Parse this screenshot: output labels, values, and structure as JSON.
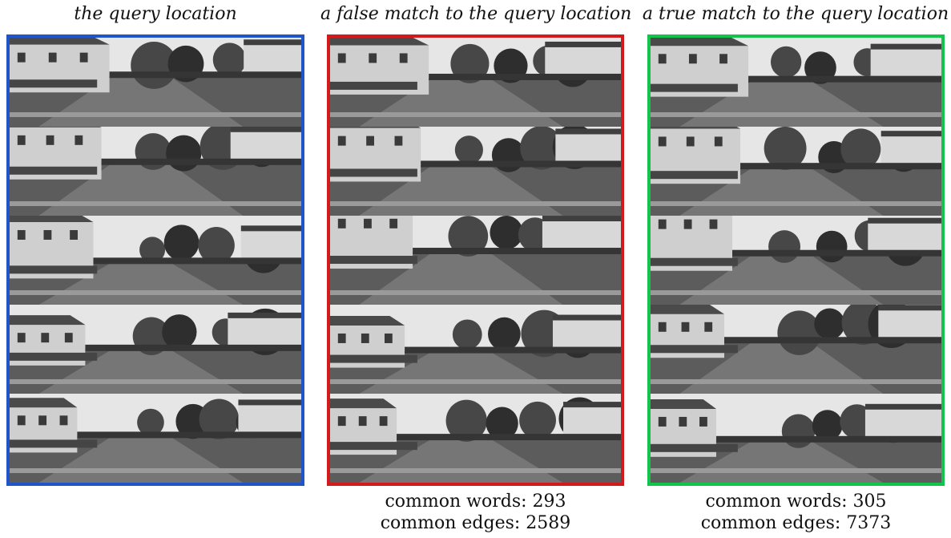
{
  "panels": [
    {
      "title": "the query location",
      "border_color": "#1f55c8",
      "frame_count": 5,
      "stats": null
    },
    {
      "title": "a false match to the query location",
      "border_color": "#d21a1a",
      "frame_count": 5,
      "stats": {
        "words_label": "common words:",
        "words_value": "293",
        "edges_label": "common edges:",
        "edges_value": "2589"
      }
    },
    {
      "title": "a true match to the query location",
      "border_color": "#12c44a",
      "frame_count": 5,
      "stats": {
        "words_label": "common words:",
        "words_value": "305",
        "edges_label": "common edges:",
        "edges_value": "7373"
      }
    }
  ]
}
